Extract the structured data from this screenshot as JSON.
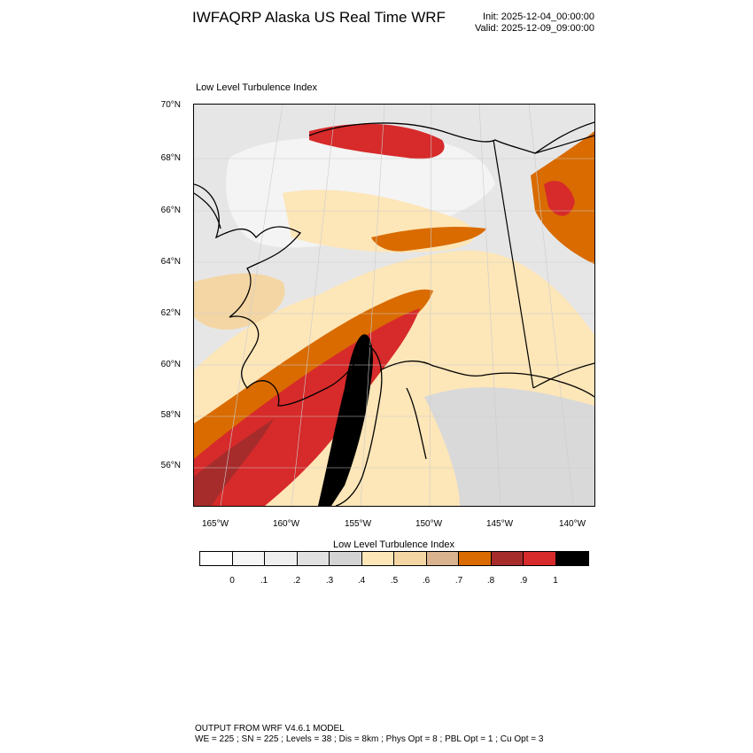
{
  "header": {
    "title": "IWFAQRP Alaska US Real Time WRF",
    "init": "Init: 2025-12-04_00:00:00",
    "valid": "Valid: 2025-12-09_09:00:00"
  },
  "map": {
    "field_label": "Low Level Turbulence Index",
    "lat_ticks": [
      "70°N",
      "68°N",
      "66°N",
      "64°N",
      "62°N",
      "60°N",
      "58°N",
      "56°N"
    ],
    "lon_ticks": [
      "165°W",
      "160°W",
      "155°W",
      "150°W",
      "145°W",
      "140°W"
    ]
  },
  "colorbar": {
    "title": "Low Level Turbulence Index",
    "colors": [
      "#ffffff",
      "#f6f6f6",
      "#efefef",
      "#e1e1e1",
      "#d3d3d3",
      "#fde6b8",
      "#f4d6a4",
      "#d9b48e",
      "#d96b00",
      "#a62c2c",
      "#d72a2a",
      "#000000"
    ],
    "labels": [
      "0",
      ".1",
      ".2",
      ".3",
      ".4",
      ".5",
      ".6",
      ".7",
      ".8",
      ".9",
      "1"
    ]
  },
  "footer": {
    "line1": "OUTPUT FROM WRF V4.6.1 MODEL",
    "line2": "WE = 225 ; SN = 225 ; Levels = 38 ; Dis = 8km ; Phys Opt = 8 ; PBL Opt = 1 ; Cu Opt = 3"
  }
}
